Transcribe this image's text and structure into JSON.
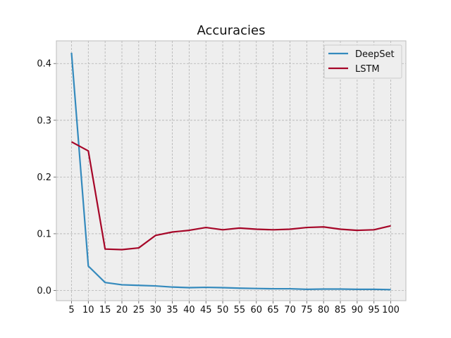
{
  "chart_data": {
    "type": "line",
    "title": "Accuracies",
    "xlabel": "",
    "ylabel": "",
    "x": [
      5,
      10,
      15,
      20,
      25,
      30,
      35,
      40,
      45,
      50,
      55,
      60,
      65,
      70,
      75,
      80,
      85,
      90,
      95,
      100
    ],
    "x_tick_labels": [
      "5",
      "10",
      "15",
      "20",
      "25",
      "30",
      "35",
      "40",
      "45",
      "50",
      "55",
      "60",
      "65",
      "70",
      "75",
      "80",
      "85",
      "90",
      "95",
      "100"
    ],
    "y_ticks": [
      0.0,
      0.1,
      0.2,
      0.3,
      0.4
    ],
    "y_tick_labels": [
      "0.0",
      "0.1",
      "0.2",
      "0.3",
      "0.4"
    ],
    "xlim": [
      0.5,
      104.5
    ],
    "ylim": [
      -0.018,
      0.44
    ],
    "grid": true,
    "legend_position": "top-right",
    "series": [
      {
        "name": "DeepSet",
        "color": "#348abd",
        "values": [
          0.419,
          0.043,
          0.014,
          0.01,
          0.009,
          0.008,
          0.006,
          0.005,
          0.0055,
          0.005,
          0.004,
          0.0035,
          0.003,
          0.003,
          0.002,
          0.0025,
          0.0025,
          0.002,
          0.002,
          0.0015
        ]
      },
      {
        "name": "LSTM",
        "color": "#a60628",
        "values": [
          0.262,
          0.246,
          0.073,
          0.072,
          0.075,
          0.097,
          0.103,
          0.106,
          0.111,
          0.107,
          0.11,
          0.108,
          0.107,
          0.108,
          0.111,
          0.112,
          0.108,
          0.106,
          0.107,
          0.114
        ]
      }
    ]
  }
}
